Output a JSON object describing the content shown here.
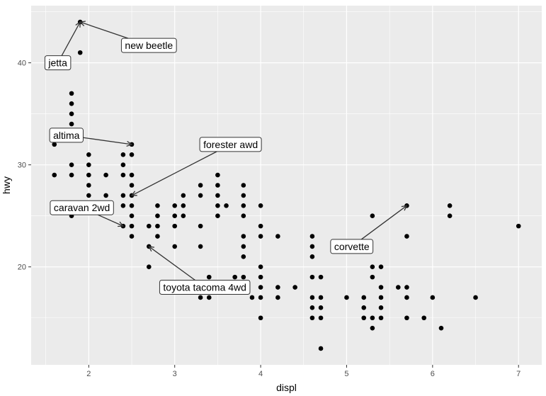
{
  "chart_data": {
    "type": "scatter",
    "xlabel": "displ",
    "ylabel": "hwy",
    "xlim": [
      1.33,
      7.27
    ],
    "ylim": [
      10.4,
      45.6
    ],
    "x_ticks": [
      2,
      3,
      4,
      5,
      6,
      7
    ],
    "y_ticks": [
      20,
      30,
      40
    ],
    "grid": true,
    "colors": {
      "panel": "#ebebeb",
      "grid": "#ffffff",
      "point": "#000000",
      "arrow": "#333333"
    },
    "points": [
      [
        1.6,
        33
      ],
      [
        1.6,
        32
      ],
      [
        1.6,
        29
      ],
      [
        1.8,
        37
      ],
      [
        1.8,
        36
      ],
      [
        1.8,
        35
      ],
      [
        1.8,
        34
      ],
      [
        1.8,
        30
      ],
      [
        1.8,
        29
      ],
      [
        1.8,
        26
      ],
      [
        1.8,
        25
      ],
      [
        1.9,
        44
      ],
      [
        1.9,
        41
      ],
      [
        2.0,
        31
      ],
      [
        2.0,
        30
      ],
      [
        2.0,
        29
      ],
      [
        2.0,
        28
      ],
      [
        2.0,
        27
      ],
      [
        2.2,
        29
      ],
      [
        2.2,
        27
      ],
      [
        2.4,
        31
      ],
      [
        2.4,
        30
      ],
      [
        2.4,
        29
      ],
      [
        2.4,
        27
      ],
      [
        2.4,
        26
      ],
      [
        2.4,
        24
      ],
      [
        2.5,
        32
      ],
      [
        2.5,
        31
      ],
      [
        2.5,
        29
      ],
      [
        2.5,
        28
      ],
      [
        2.5,
        27
      ],
      [
        2.5,
        26
      ],
      [
        2.5,
        25
      ],
      [
        2.5,
        24
      ],
      [
        2.5,
        23
      ],
      [
        2.7,
        24
      ],
      [
        2.7,
        22
      ],
      [
        2.7,
        20
      ],
      [
        2.8,
        26
      ],
      [
        2.8,
        25
      ],
      [
        2.8,
        24
      ],
      [
        2.8,
        23
      ],
      [
        3.0,
        26
      ],
      [
        3.0,
        25
      ],
      [
        3.0,
        24
      ],
      [
        3.0,
        22
      ],
      [
        3.1,
        27
      ],
      [
        3.1,
        26
      ],
      [
        3.1,
        25
      ],
      [
        3.3,
        28
      ],
      [
        3.3,
        27
      ],
      [
        3.3,
        24
      ],
      [
        3.3,
        22
      ],
      [
        3.3,
        17
      ],
      [
        3.4,
        19
      ],
      [
        3.4,
        17
      ],
      [
        3.5,
        29
      ],
      [
        3.5,
        28
      ],
      [
        3.5,
        27
      ],
      [
        3.5,
        26
      ],
      [
        3.5,
        25
      ],
      [
        3.6,
        26
      ],
      [
        3.7,
        19
      ],
      [
        3.8,
        28
      ],
      [
        3.8,
        27
      ],
      [
        3.8,
        26
      ],
      [
        3.8,
        25
      ],
      [
        3.8,
        23
      ],
      [
        3.8,
        22
      ],
      [
        3.8,
        21
      ],
      [
        3.8,
        19
      ],
      [
        3.9,
        17
      ],
      [
        4.0,
        26
      ],
      [
        4.0,
        24
      ],
      [
        4.0,
        23
      ],
      [
        4.0,
        20
      ],
      [
        4.0,
        19
      ],
      [
        4.0,
        18
      ],
      [
        4.0,
        17
      ],
      [
        4.0,
        15
      ],
      [
        4.2,
        23
      ],
      [
        4.2,
        18
      ],
      [
        4.2,
        17
      ],
      [
        4.4,
        18
      ],
      [
        4.6,
        23
      ],
      [
        4.6,
        22
      ],
      [
        4.6,
        21
      ],
      [
        4.6,
        19
      ],
      [
        4.6,
        17
      ],
      [
        4.6,
        16
      ],
      [
        4.6,
        15
      ],
      [
        4.7,
        19
      ],
      [
        4.7,
        17
      ],
      [
        4.7,
        16
      ],
      [
        4.7,
        15
      ],
      [
        4.7,
        12
      ],
      [
        5.0,
        17
      ],
      [
        5.2,
        17
      ],
      [
        5.2,
        16
      ],
      [
        5.2,
        15
      ],
      [
        5.3,
        25
      ],
      [
        5.3,
        20
      ],
      [
        5.3,
        19
      ],
      [
        5.3,
        15
      ],
      [
        5.3,
        14
      ],
      [
        5.4,
        20
      ],
      [
        5.4,
        18
      ],
      [
        5.4,
        17
      ],
      [
        5.4,
        16
      ],
      [
        5.4,
        15
      ],
      [
        5.6,
        18
      ],
      [
        5.7,
        26
      ],
      [
        5.7,
        23
      ],
      [
        5.7,
        18
      ],
      [
        5.7,
        17
      ],
      [
        5.7,
        15
      ],
      [
        5.9,
        15
      ],
      [
        6.0,
        17
      ],
      [
        6.1,
        14
      ],
      [
        6.2,
        26
      ],
      [
        6.2,
        25
      ],
      [
        6.5,
        17
      ],
      [
        7.0,
        24
      ]
    ],
    "annotations": [
      {
        "label": "new beetle",
        "point": [
          1.9,
          44
        ],
        "box_center": [
          2.7,
          41.7
        ]
      },
      {
        "label": "jetta",
        "point": [
          1.9,
          44
        ],
        "box_center": [
          1.64,
          40.0
        ]
      },
      {
        "label": "altima",
        "point": [
          2.5,
          32
        ],
        "box_center": [
          1.74,
          32.9
        ]
      },
      {
        "label": "forester awd",
        "point": [
          2.5,
          27
        ],
        "box_center": [
          3.65,
          32.0
        ]
      },
      {
        "label": "caravan 2wd",
        "point": [
          2.4,
          24
        ],
        "box_center": [
          1.92,
          25.8
        ]
      },
      {
        "label": "corvette",
        "point": [
          5.7,
          26
        ],
        "box_center": [
          5.06,
          22.0
        ]
      },
      {
        "label": "toyota tacoma 4wd",
        "point": [
          2.7,
          22
        ],
        "box_center": [
          3.35,
          18.0
        ]
      }
    ]
  }
}
